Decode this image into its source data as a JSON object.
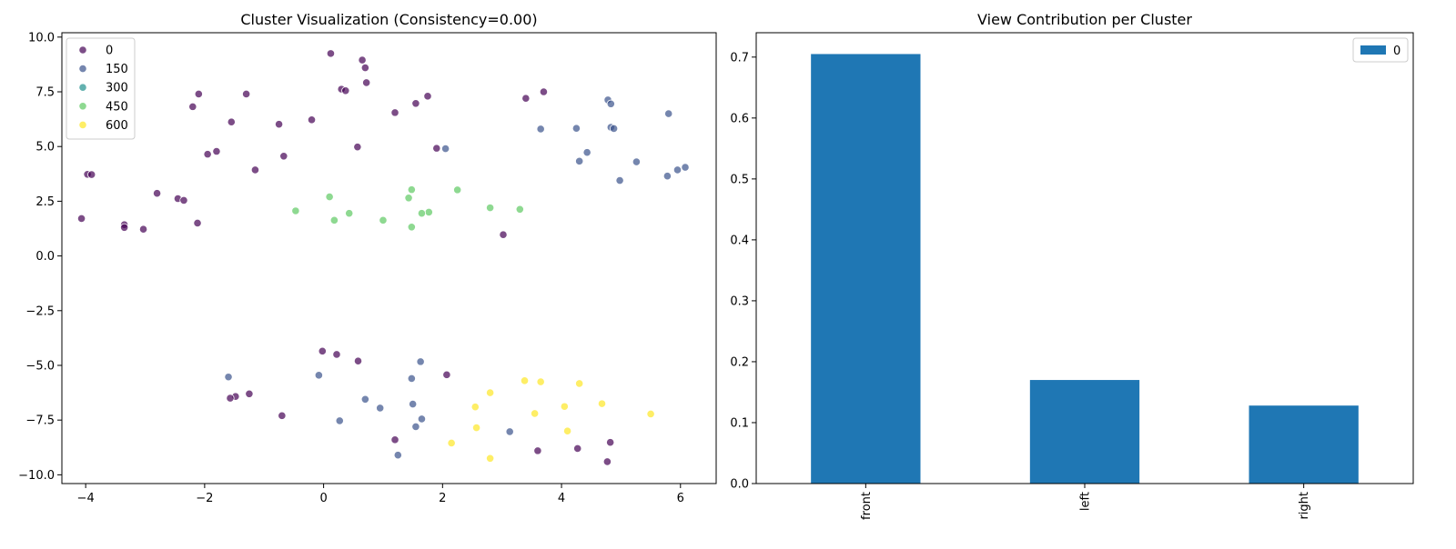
{
  "chart_data": [
    {
      "type": "scatter",
      "title": "Cluster Visualization (Consistency=0.00)",
      "xlabel": "",
      "ylabel": "",
      "xlim": [
        -4.4,
        6.6
      ],
      "ylim": [
        -10.4,
        10.2
      ],
      "xticks": [
        "−4",
        "−2",
        "0",
        "2",
        "4",
        "6"
      ],
      "xtick_values": [
        -4,
        -2,
        0,
        2,
        4,
        6
      ],
      "yticks": [
        "10.0",
        "7.5",
        "5.0",
        "2.5",
        "0.0",
        "−2.5",
        "−5.0",
        "−7.5",
        "−10.0"
      ],
      "ytick_values": [
        10,
        7.5,
        5,
        2.5,
        0,
        -2.5,
        -5,
        -7.5,
        -10
      ],
      "grid": false,
      "legend_position": "top-left",
      "series": [
        {
          "name": "0",
          "color": "#440154",
          "points": [
            [
              0.12,
              9.25
            ],
            [
              0.65,
              8.95
            ],
            [
              0.7,
              8.6
            ],
            [
              -2.1,
              7.4
            ],
            [
              -1.3,
              7.4
            ],
            [
              0.72,
              7.92
            ],
            [
              0.3,
              7.62
            ],
            [
              0.37,
              7.55
            ],
            [
              3.7,
              7.5
            ],
            [
              3.4,
              7.2
            ],
            [
              1.75,
              7.3
            ],
            [
              -2.2,
              6.82
            ],
            [
              1.55,
              6.97
            ],
            [
              1.2,
              6.55
            ],
            [
              -0.2,
              6.22
            ],
            [
              -1.55,
              6.12
            ],
            [
              -0.75,
              6.02
            ],
            [
              0.57,
              4.98
            ],
            [
              1.9,
              4.92
            ],
            [
              -1.8,
              4.78
            ],
            [
              -1.95,
              4.65
            ],
            [
              -0.67,
              4.56
            ],
            [
              -1.15,
              3.93
            ],
            [
              -3.97,
              3.73
            ],
            [
              -3.9,
              3.72
            ],
            [
              -2.8,
              2.86
            ],
            [
              -2.45,
              2.62
            ],
            [
              -2.35,
              2.54
            ],
            [
              -4.07,
              1.71
            ],
            [
              -2.12,
              1.5
            ],
            [
              -3.35,
              1.43
            ],
            [
              -3.35,
              1.3
            ],
            [
              -3.03,
              1.22
            ],
            [
              3.02,
              0.97
            ],
            [
              -0.02,
              -4.35
            ],
            [
              0.22,
              -4.5
            ],
            [
              0.58,
              -4.8
            ],
            [
              2.07,
              -5.43
            ],
            [
              -1.48,
              -6.42
            ],
            [
              -1.57,
              -6.5
            ],
            [
              -1.25,
              -6.3
            ],
            [
              -0.7,
              -7.3
            ],
            [
              1.2,
              -8.4
            ],
            [
              3.6,
              -8.9
            ],
            [
              4.27,
              -8.8
            ],
            [
              4.82,
              -8.52
            ],
            [
              4.77,
              -9.4
            ]
          ]
        },
        {
          "name": "150",
          "color": "#3b528b",
          "points": [
            [
              4.78,
              7.13
            ],
            [
              4.83,
              6.95
            ],
            [
              5.8,
              6.5
            ],
            [
              4.83,
              5.88
            ],
            [
              4.88,
              5.82
            ],
            [
              3.65,
              5.8
            ],
            [
              4.25,
              5.83
            ],
            [
              2.05,
              4.9
            ],
            [
              4.43,
              4.73
            ],
            [
              4.3,
              4.33
            ],
            [
              5.26,
              4.3
            ],
            [
              6.08,
              4.05
            ],
            [
              5.95,
              3.93
            ],
            [
              5.78,
              3.65
            ],
            [
              4.98,
              3.45
            ],
            [
              1.63,
              -4.83
            ],
            [
              -1.6,
              -5.53
            ],
            [
              -0.08,
              -5.45
            ],
            [
              1.48,
              -5.6
            ],
            [
              0.7,
              -6.55
            ],
            [
              1.5,
              -6.77
            ],
            [
              0.95,
              -6.95
            ],
            [
              1.65,
              -7.45
            ],
            [
              0.27,
              -7.53
            ],
            [
              1.55,
              -7.8
            ],
            [
              3.13,
              -8.03
            ],
            [
              1.25,
              -9.1
            ]
          ]
        },
        {
          "name": "300",
          "color": "#21908d",
          "points": []
        },
        {
          "name": "450",
          "color": "#5ec962",
          "points": [
            [
              1.48,
              3.03
            ],
            [
              2.25,
              3.02
            ],
            [
              0.1,
              2.7
            ],
            [
              1.43,
              2.65
            ],
            [
              2.8,
              2.2
            ],
            [
              3.3,
              2.13
            ],
            [
              -0.47,
              2.06
            ],
            [
              0.43,
              1.95
            ],
            [
              1.77,
              2.0
            ],
            [
              1.65,
              1.95
            ],
            [
              0.18,
              1.63
            ],
            [
              1.0,
              1.63
            ],
            [
              1.48,
              1.32
            ]
          ]
        },
        {
          "name": "600",
          "color": "#fde725",
          "points": [
            [
              3.38,
              -5.7
            ],
            [
              3.65,
              -5.75
            ],
            [
              4.3,
              -5.83
            ],
            [
              2.8,
              -6.25
            ],
            [
              4.68,
              -6.75
            ],
            [
              2.55,
              -6.9
            ],
            [
              4.05,
              -6.88
            ],
            [
              3.55,
              -7.2
            ],
            [
              5.5,
              -7.22
            ],
            [
              2.57,
              -7.85
            ],
            [
              4.1,
              -8.0
            ],
            [
              2.15,
              -8.55
            ],
            [
              2.8,
              -9.25
            ]
          ]
        }
      ]
    },
    {
      "type": "bar",
      "title": "View Contribution per Cluster",
      "xlabel": "",
      "ylabel": "",
      "categories": [
        "front",
        "left",
        "right"
      ],
      "series": [
        {
          "name": "0",
          "color": "#1f77b4",
          "values": [
            0.705,
            0.17,
            0.128
          ]
        }
      ],
      "ylim": [
        0,
        0.74
      ],
      "yticks": [
        "0.0",
        "0.1",
        "0.2",
        "0.3",
        "0.4",
        "0.5",
        "0.6",
        "0.7"
      ],
      "ytick_values": [
        0,
        0.1,
        0.2,
        0.3,
        0.4,
        0.5,
        0.6,
        0.7
      ],
      "grid": false,
      "legend_position": "top-right"
    }
  ]
}
